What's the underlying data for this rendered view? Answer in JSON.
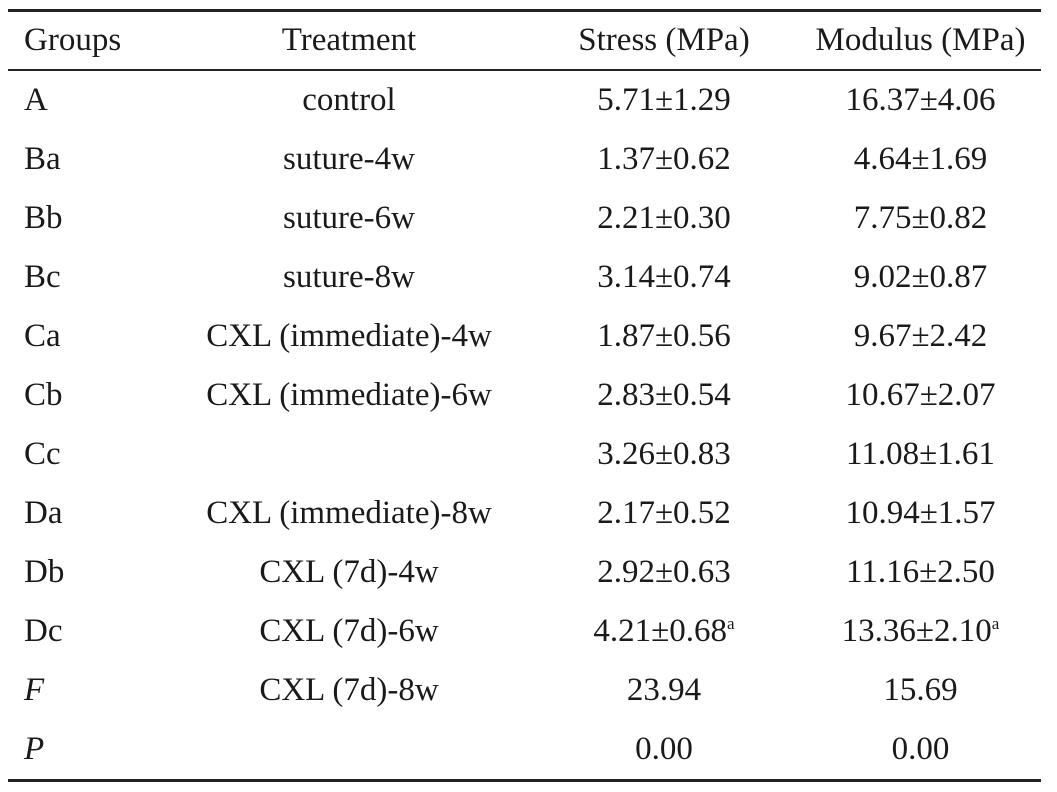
{
  "table": {
    "headers": [
      "Groups",
      "Treatment",
      "Stress (MPa)",
      "Modulus (MPa)"
    ],
    "rows": [
      {
        "group": "A",
        "treatment": "control",
        "stress": "5.71±1.29",
        "stress_sup": "",
        "modulus": "16.37±4.06",
        "modulus_sup": ""
      },
      {
        "group": "Ba",
        "treatment": "suture-4w",
        "stress": "1.37±0.62",
        "stress_sup": "",
        "modulus": "4.64±1.69",
        "modulus_sup": ""
      },
      {
        "group": "Bb",
        "treatment": "suture-6w",
        "stress": "2.21±0.30",
        "stress_sup": "",
        "modulus": "7.75±0.82",
        "modulus_sup": ""
      },
      {
        "group": "Bc",
        "treatment": "suture-8w",
        "stress": "3.14±0.74",
        "stress_sup": "",
        "modulus": "9.02±0.87",
        "modulus_sup": ""
      },
      {
        "group": "Ca",
        "treatment": "CXL (immediate)-4w",
        "stress": "1.87±0.56",
        "stress_sup": "",
        "modulus": "9.67±2.42",
        "modulus_sup": ""
      },
      {
        "group": "Cb",
        "treatment": "CXL (immediate)-6w",
        "stress": "2.83±0.54",
        "stress_sup": "",
        "modulus": "10.67±2.07",
        "modulus_sup": ""
      },
      {
        "group": "Cc",
        "treatment": "",
        "stress": "3.26±0.83",
        "stress_sup": "",
        "modulus": "11.08±1.61",
        "modulus_sup": ""
      },
      {
        "group": "Da",
        "treatment": "CXL (immediate)-8w",
        "stress": "2.17±0.52",
        "stress_sup": "",
        "modulus": "10.94±1.57",
        "modulus_sup": ""
      },
      {
        "group": "Db",
        "treatment": "CXL (7d)-4w",
        "stress": "2.92±0.63",
        "stress_sup": "",
        "modulus": "11.16±2.50",
        "modulus_sup": ""
      },
      {
        "group": "Dc",
        "treatment": "CXL (7d)-6w",
        "stress": "4.21±0.68",
        "stress_sup": "a",
        "modulus": "13.36±2.10",
        "modulus_sup": "a"
      },
      {
        "group": "F",
        "treatment": "CXL (7d)-8w",
        "stress": "23.94",
        "stress_sup": "",
        "modulus": "15.69",
        "modulus_sup": "",
        "italic_group": true
      },
      {
        "group": "P",
        "treatment": "",
        "stress": "0.00",
        "stress_sup": "",
        "modulus": "0.00",
        "modulus_sup": "",
        "italic_group": true
      }
    ]
  }
}
